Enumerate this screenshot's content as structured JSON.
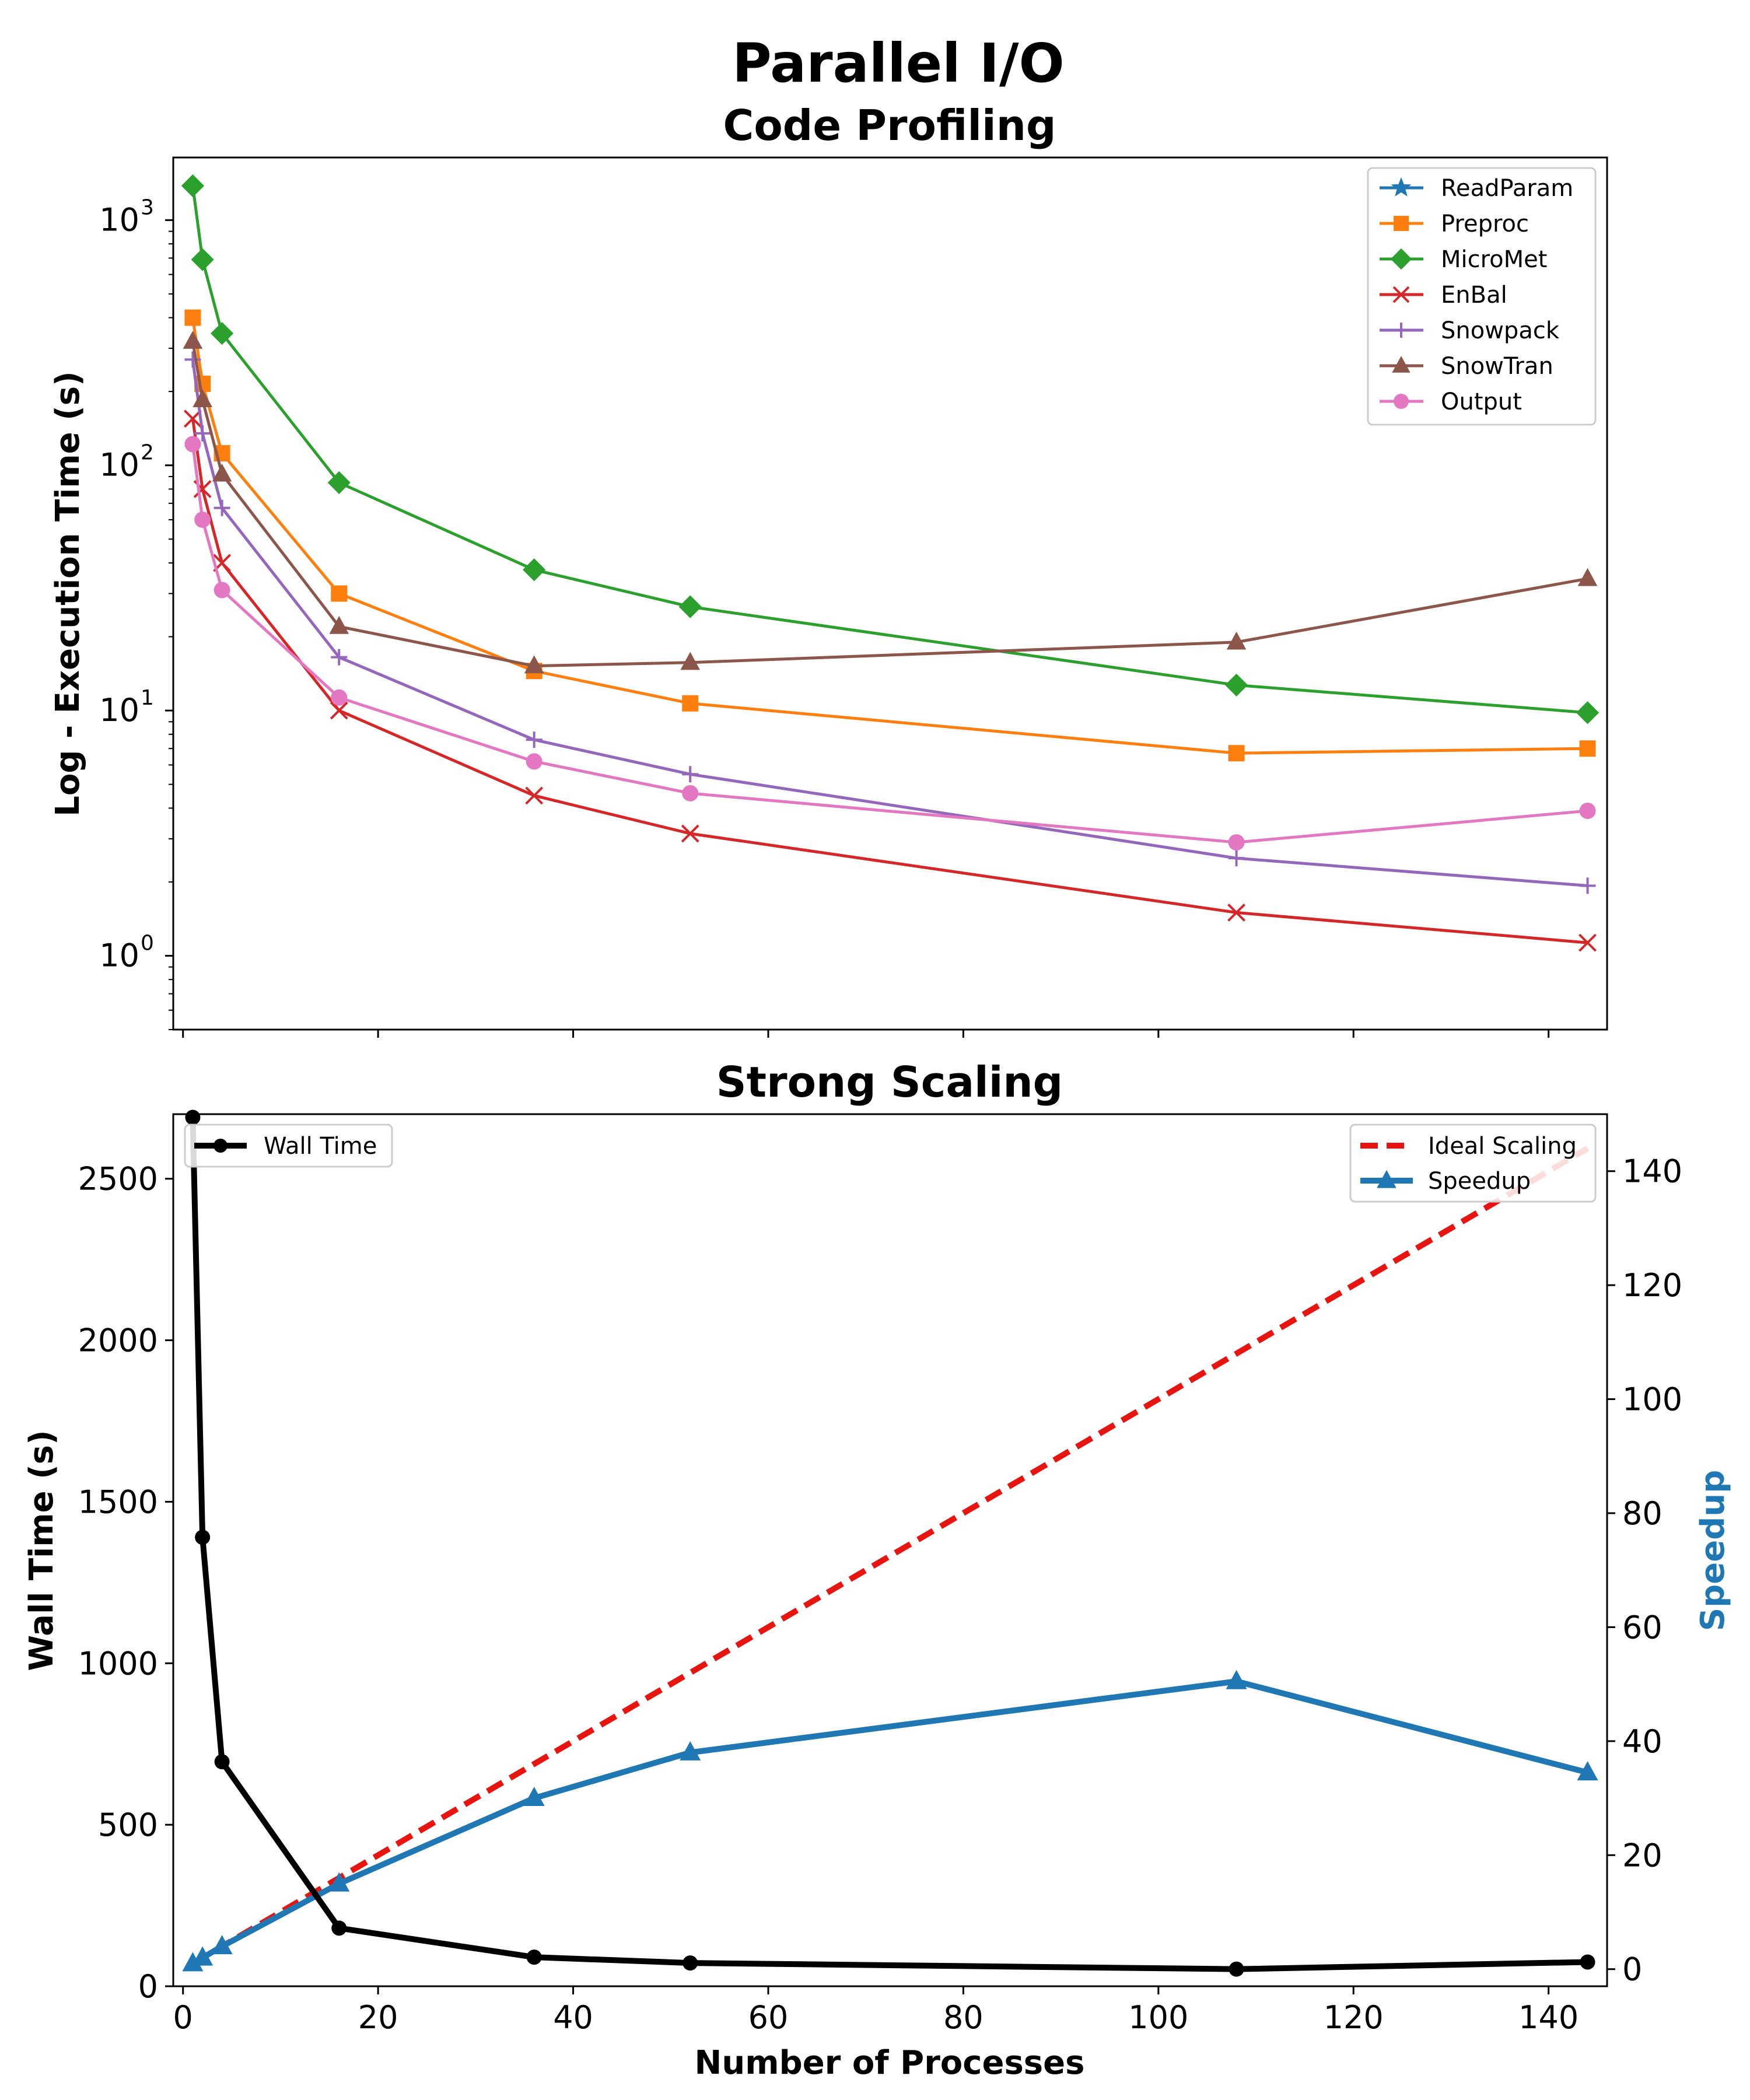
{
  "figure": {
    "suptitle": "Parallel I/O",
    "colors": {
      "ReadParam": "#1f77b4",
      "Preproc": "#ff7f0e",
      "MicroMet": "#2ca02c",
      "EnBal": "#d62728",
      "Snowpack": "#9467bd",
      "SnowTran": "#8c564b",
      "Output": "#e377c2",
      "wall": "#000000",
      "ideal": "#e8140f",
      "speedup": "#1f77b4"
    }
  },
  "chart_data": [
    {
      "type": "line",
      "title": "Code Profiling",
      "xlabel": "",
      "ylabel": "Log - Execution Time (s)",
      "yscale": "log",
      "xlim": [
        -1,
        146
      ],
      "ylim": [
        0.5,
        1800
      ],
      "x_ticks": [
        0,
        20,
        40,
        60,
        80,
        100,
        120,
        140
      ],
      "x_tick_labels_shown": false,
      "y_ticks": [
        1,
        10,
        100,
        1000
      ],
      "y_tick_labels": [
        "10",
        "10",
        "10",
        "10"
      ],
      "y_tick_exponents": [
        "0",
        "1",
        "2",
        "3"
      ],
      "x": [
        1,
        2,
        4,
        16,
        36,
        52,
        108,
        144
      ],
      "legend": "top-right",
      "series": [
        {
          "name": "ReadParam",
          "marker": "star",
          "values": [
            null,
            null,
            null,
            null,
            null,
            null,
            null,
            null
          ]
        },
        {
          "name": "Preproc",
          "marker": "square",
          "values": [
            400,
            215,
            112,
            30,
            14.5,
            10.7,
            6.7,
            7.0
          ]
        },
        {
          "name": "MicroMet",
          "marker": "diamond",
          "values": [
            1380,
            690,
            345,
            85,
            37.5,
            26.5,
            12.7,
            9.8
          ]
        },
        {
          "name": "EnBal",
          "marker": "x",
          "values": [
            155,
            80,
            40,
            10,
            4.5,
            3.15,
            1.5,
            1.13
          ]
        },
        {
          "name": "Snowpack",
          "marker": "plus",
          "values": [
            270,
            135,
            67,
            16.5,
            7.6,
            5.5,
            2.5,
            1.93
          ]
        },
        {
          "name": "SnowTran",
          "marker": "triangle",
          "values": [
            320,
            185,
            92,
            22,
            15.2,
            15.7,
            19,
            34.5
          ]
        },
        {
          "name": "Output",
          "marker": "circle",
          "values": [
            122,
            60,
            31,
            11.3,
            6.2,
            4.6,
            2.9,
            3.9
          ]
        }
      ]
    },
    {
      "type": "line",
      "title": "Strong Scaling",
      "xlabel": "Number of Processes",
      "ylabel": "Wall Time (s)",
      "ylabel_right": "Speedup",
      "xlim": [
        -1,
        146
      ],
      "ylim": [
        0,
        2700
      ],
      "ylim_right": [
        -3,
        150
      ],
      "x_ticks": [
        0,
        20,
        40,
        60,
        80,
        100,
        120,
        140
      ],
      "y_ticks": [
        0,
        500,
        1000,
        1500,
        2000,
        2500
      ],
      "y_ticks_right": [
        0,
        20,
        40,
        60,
        80,
        100,
        120,
        140
      ],
      "x": [
        1,
        2,
        4,
        16,
        36,
        52,
        108,
        144
      ],
      "wall_time": {
        "name": "Wall Time",
        "legend": "top-left",
        "values": [
          2690,
          1390,
          695,
          180,
          90,
          72,
          53,
          75
        ]
      },
      "right_series": [
        {
          "name": "Ideal Scaling",
          "style": "dashed",
          "values": [
            1,
            2,
            4,
            16,
            36,
            52,
            108,
            144
          ]
        },
        {
          "name": "Speedup",
          "marker": "triangle",
          "values": [
            1,
            2,
            4,
            15,
            30,
            38,
            50.5,
            34.5
          ]
        }
      ],
      "legend_right": "top-right"
    }
  ]
}
